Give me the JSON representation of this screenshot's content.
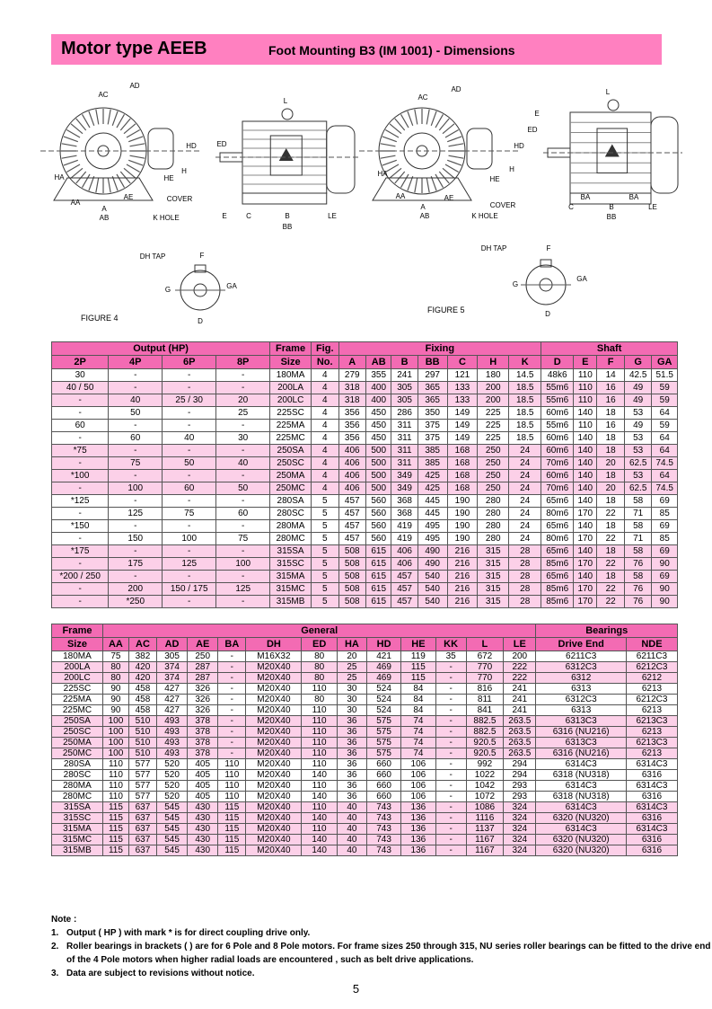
{
  "header": {
    "title": "Motor type AEEB",
    "subtitle": "Foot Mounting B3 (IM 1001) - Dimensions",
    "bg_color": "#ff80c0"
  },
  "figures": {
    "fig4": {
      "caption": "FIGURE 4",
      "labels": [
        "AD",
        "AC",
        "HD",
        "ED",
        "L",
        "H",
        "HE",
        "HA",
        "AA",
        "AE",
        "COVER",
        "A",
        "AB",
        "K HOLE",
        "E",
        "C",
        "B",
        "LE",
        "BB",
        "DH TAP",
        "F",
        "G",
        "GA",
        "D"
      ]
    },
    "fig5": {
      "caption": "FIGURE 5",
      "labels": [
        "AD",
        "AC",
        "HD",
        "H",
        "HE",
        "HA",
        "AA",
        "AE",
        "COVER",
        "A",
        "AB",
        "K HOLE",
        "L",
        "E",
        "ED",
        "BA",
        "BA",
        "C",
        "B",
        "LE",
        "BB",
        "DH TAP",
        "F",
        "G",
        "GA",
        "D"
      ]
    }
  },
  "table1": {
    "groups": [
      "Output (HP)",
      "Frame",
      "Fig.",
      "Fixing",
      "Shaft"
    ],
    "columns": [
      "2P",
      "4P",
      "6P",
      "8P",
      "Size",
      "No.",
      "A",
      "AB",
      "B",
      "BB",
      "C",
      "H",
      "K",
      "D",
      "E",
      "F",
      "G",
      "GA"
    ],
    "rows": [
      [
        "30",
        "-",
        "-",
        "-",
        "180MA",
        "4",
        "279",
        "355",
        "241",
        "297",
        "121",
        "180",
        "14.5",
        "48k6",
        "110",
        "14",
        "42.5",
        "51.5"
      ],
      [
        "40 / 50",
        "-",
        "-",
        "-",
        "200LA",
        "4",
        "318",
        "400",
        "305",
        "365",
        "133",
        "200",
        "18.5",
        "55m6",
        "110",
        "16",
        "49",
        "59"
      ],
      [
        "-",
        "40",
        "25 / 30",
        "20",
        "200LC",
        "4",
        "318",
        "400",
        "305",
        "365",
        "133",
        "200",
        "18.5",
        "55m6",
        "110",
        "16",
        "49",
        "59"
      ],
      [
        "-",
        "50",
        "-",
        "25",
        "225SC",
        "4",
        "356",
        "450",
        "286",
        "350",
        "149",
        "225",
        "18.5",
        "60m6",
        "140",
        "18",
        "53",
        "64"
      ],
      [
        "60",
        "-",
        "-",
        "-",
        "225MA",
        "4",
        "356",
        "450",
        "311",
        "375",
        "149",
        "225",
        "18.5",
        "55m6",
        "110",
        "16",
        "49",
        "59"
      ],
      [
        "-",
        "60",
        "40",
        "30",
        "225MC",
        "4",
        "356",
        "450",
        "311",
        "375",
        "149",
        "225",
        "18.5",
        "60m6",
        "140",
        "18",
        "53",
        "64"
      ],
      [
        "*75",
        "-",
        "-",
        "-",
        "250SA",
        "4",
        "406",
        "500",
        "311",
        "385",
        "168",
        "250",
        "24",
        "60m6",
        "140",
        "18",
        "53",
        "64"
      ],
      [
        "-",
        "75",
        "50",
        "40",
        "250SC",
        "4",
        "406",
        "500",
        "311",
        "385",
        "168",
        "250",
        "24",
        "70m6",
        "140",
        "20",
        "62.5",
        "74.5"
      ],
      [
        "*100",
        "-",
        "-",
        "-",
        "250MA",
        "4",
        "406",
        "500",
        "349",
        "425",
        "168",
        "250",
        "24",
        "60m6",
        "140",
        "18",
        "53",
        "64"
      ],
      [
        "-",
        "100",
        "60",
        "50",
        "250MC",
        "4",
        "406",
        "500",
        "349",
        "425",
        "168",
        "250",
        "24",
        "70m6",
        "140",
        "20",
        "62.5",
        "74.5"
      ],
      [
        "*125",
        "-",
        "-",
        "-",
        "280SA",
        "5",
        "457",
        "560",
        "368",
        "445",
        "190",
        "280",
        "24",
        "65m6",
        "140",
        "18",
        "58",
        "69"
      ],
      [
        "-",
        "125",
        "75",
        "60",
        "280SC",
        "5",
        "457",
        "560",
        "368",
        "445",
        "190",
        "280",
        "24",
        "80m6",
        "170",
        "22",
        "71",
        "85"
      ],
      [
        "*150",
        "-",
        "-",
        "-",
        "280MA",
        "5",
        "457",
        "560",
        "419",
        "495",
        "190",
        "280",
        "24",
        "65m6",
        "140",
        "18",
        "58",
        "69"
      ],
      [
        "-",
        "150",
        "100",
        "75",
        "280MC",
        "5",
        "457",
        "560",
        "419",
        "495",
        "190",
        "280",
        "24",
        "80m6",
        "170",
        "22",
        "71",
        "85"
      ],
      [
        "*175",
        "-",
        "-",
        "-",
        "315SA",
        "5",
        "508",
        "615",
        "406",
        "490",
        "216",
        "315",
        "28",
        "65m6",
        "140",
        "18",
        "58",
        "69"
      ],
      [
        "-",
        "175",
        "125",
        "100",
        "315SC",
        "5",
        "508",
        "615",
        "406",
        "490",
        "216",
        "315",
        "28",
        "85m6",
        "170",
        "22",
        "76",
        "90"
      ],
      [
        "*200 / 250",
        "-",
        "-",
        "-",
        "315MA",
        "5",
        "508",
        "615",
        "457",
        "540",
        "216",
        "315",
        "28",
        "65m6",
        "140",
        "18",
        "58",
        "69"
      ],
      [
        "-",
        "200",
        "150 / 175",
        "125",
        "315MC",
        "5",
        "508",
        "615",
        "457",
        "540",
        "216",
        "315",
        "28",
        "85m6",
        "170",
        "22",
        "76",
        "90"
      ],
      [
        "-",
        "*250",
        "-",
        "-",
        "315MB",
        "5",
        "508",
        "615",
        "457",
        "540",
        "216",
        "315",
        "28",
        "85m6",
        "170",
        "22",
        "76",
        "90"
      ]
    ]
  },
  "table2": {
    "groups": [
      "Frame",
      "General",
      "Bearings"
    ],
    "columns": [
      "Size",
      "AA",
      "AC",
      "AD",
      "AE",
      "BA",
      "DH",
      "ED",
      "HA",
      "HD",
      "HE",
      "KK",
      "L",
      "LE",
      "Drive End",
      "NDE"
    ],
    "rows": [
      [
        "180MA",
        "75",
        "382",
        "305",
        "250",
        "-",
        "M16X32",
        "80",
        "20",
        "421",
        "119",
        "35",
        "672",
        "200",
        "6211C3",
        "6211C3"
      ],
      [
        "200LA",
        "80",
        "420",
        "374",
        "287",
        "-",
        "M20X40",
        "80",
        "25",
        "469",
        "115",
        "-",
        "770",
        "222",
        "6312C3",
        "6212C3"
      ],
      [
        "200LC",
        "80",
        "420",
        "374",
        "287",
        "-",
        "M20X40",
        "80",
        "25",
        "469",
        "115",
        "-",
        "770",
        "222",
        "6312",
        "6212"
      ],
      [
        "225SC",
        "90",
        "458",
        "427",
        "326",
        "-",
        "M20X40",
        "110",
        "30",
        "524",
        "84",
        "-",
        "816",
        "241",
        "6313",
        "6213"
      ],
      [
        "225MA",
        "90",
        "458",
        "427",
        "326",
        "-",
        "M20X40",
        "80",
        "30",
        "524",
        "84",
        "-",
        "811",
        "241",
        "6312C3",
        "6212C3"
      ],
      [
        "225MC",
        "90",
        "458",
        "427",
        "326",
        "-",
        "M20X40",
        "110",
        "30",
        "524",
        "84",
        "-",
        "841",
        "241",
        "6313",
        "6213"
      ],
      [
        "250SA",
        "100",
        "510",
        "493",
        "378",
        "-",
        "M20X40",
        "110",
        "36",
        "575",
        "74",
        "-",
        "882.5",
        "263.5",
        "6313C3",
        "6213C3"
      ],
      [
        "250SC",
        "100",
        "510",
        "493",
        "378",
        "-",
        "M20X40",
        "110",
        "36",
        "575",
        "74",
        "-",
        "882.5",
        "263.5",
        "6316  (NU216)",
        "6213"
      ],
      [
        "250MA",
        "100",
        "510",
        "493",
        "378",
        "-",
        "M20X40",
        "110",
        "36",
        "575",
        "74",
        "-",
        "920.5",
        "263.5",
        "6313C3",
        "6213C3"
      ],
      [
        "250MC",
        "100",
        "510",
        "493",
        "378",
        "-",
        "M20X40",
        "110",
        "36",
        "575",
        "74",
        "-",
        "920.5",
        "263.5",
        "6316  (NU216)",
        "6213"
      ],
      [
        "280SA",
        "110",
        "577",
        "520",
        "405",
        "110",
        "M20X40",
        "110",
        "36",
        "660",
        "106",
        "-",
        "992",
        "294",
        "6314C3",
        "6314C3"
      ],
      [
        "280SC",
        "110",
        "577",
        "520",
        "405",
        "110",
        "M20X40",
        "140",
        "36",
        "660",
        "106",
        "-",
        "1022",
        "294",
        "6318  (NU318)",
        "6316"
      ],
      [
        "280MA",
        "110",
        "577",
        "520",
        "405",
        "110",
        "M20X40",
        "110",
        "36",
        "660",
        "106",
        "-",
        "1042",
        "293",
        "6314C3",
        "6314C3"
      ],
      [
        "280MC",
        "110",
        "577",
        "520",
        "405",
        "110",
        "M20X40",
        "140",
        "36",
        "660",
        "106",
        "-",
        "1072",
        "293",
        "6318  (NU318)",
        "6316"
      ],
      [
        "315SA",
        "115",
        "637",
        "545",
        "430",
        "115",
        "M20X40",
        "110",
        "40",
        "743",
        "136",
        "-",
        "1086",
        "324",
        "6314C3",
        "6314C3"
      ],
      [
        "315SC",
        "115",
        "637",
        "545",
        "430",
        "115",
        "M20X40",
        "140",
        "40",
        "743",
        "136",
        "-",
        "1116",
        "324",
        "6320  (NU320)",
        "6316"
      ],
      [
        "315MA",
        "115",
        "637",
        "545",
        "430",
        "115",
        "M20X40",
        "110",
        "40",
        "743",
        "136",
        "-",
        "1137",
        "324",
        "6314C3",
        "6314C3"
      ],
      [
        "315MC",
        "115",
        "637",
        "545",
        "430",
        "115",
        "M20X40",
        "140",
        "40",
        "743",
        "136",
        "-",
        "1167",
        "324",
        "6320  (NU320)",
        "6316"
      ],
      [
        "315MB",
        "115",
        "637",
        "545",
        "430",
        "115",
        "M20X40",
        "140",
        "40",
        "743",
        "136",
        "-",
        "1167",
        "324",
        "6320  (NU320)",
        "6316"
      ]
    ]
  },
  "notes": {
    "title": "Note :",
    "items": [
      {
        "num": "1.",
        "text": "Output ( HP ) with mark *  is for direct coupling drive only."
      },
      {
        "num": "2.",
        "text": "Roller bearings in brackets (     ) are for 6 Pole and 8 Pole motors.  For frame sizes 250 through 315, NU series roller bearings can be fitted to the drive end of the 4 Pole motors  when higher radial loads are encountered , such as belt drive applications."
      },
      {
        "num": "3.",
        "text": "Data are subject to revisions without notice."
      }
    ]
  },
  "page_number": "5",
  "colors": {
    "header_cell": "#f36bb3",
    "shaded_row": "#fcd0e8"
  }
}
